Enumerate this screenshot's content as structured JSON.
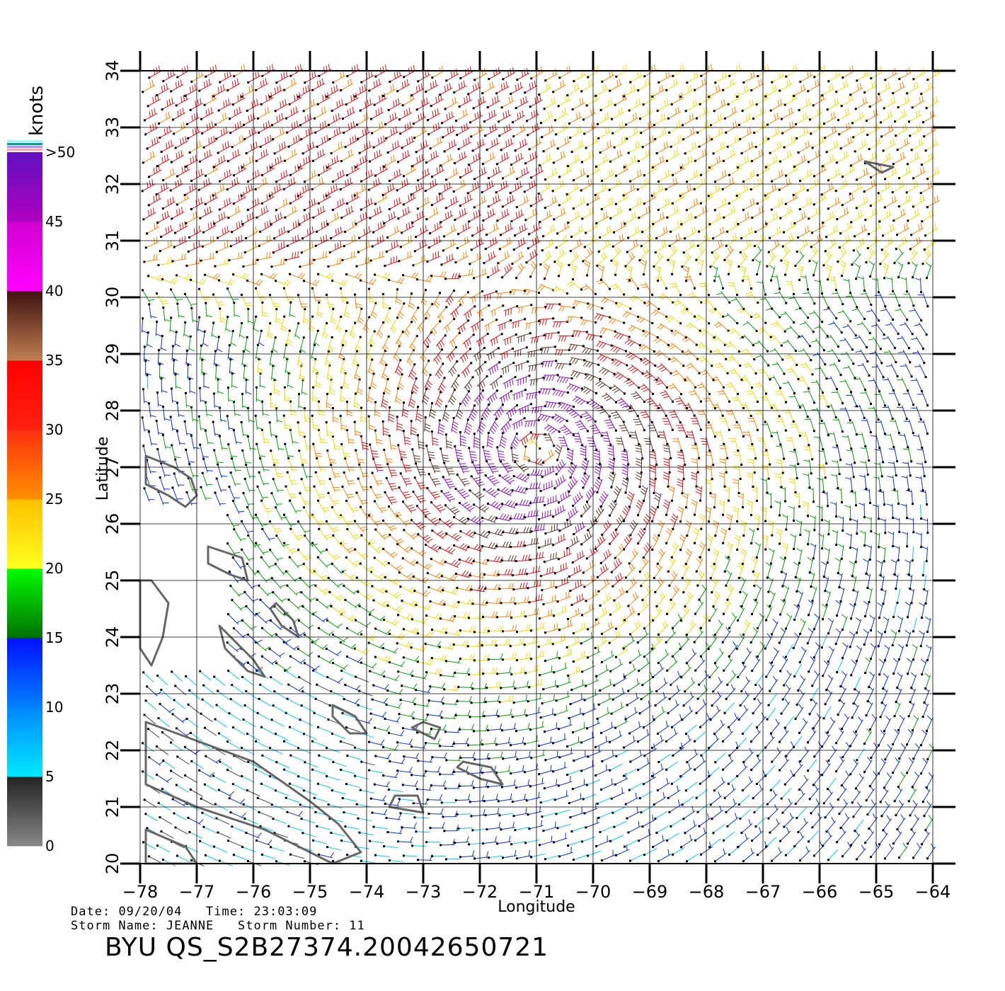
{
  "chart_data": {
    "type": "wind-barb-map",
    "xlabel": "Longitude",
    "ylabel": "Latitude",
    "xlim": [
      -78,
      -64
    ],
    "ylim": [
      20,
      34
    ],
    "x_ticks": [
      "−78",
      "−77",
      "−76",
      "−75",
      "−74",
      "−73",
      "−72",
      "−71",
      "−70",
      "−69",
      "−68",
      "−67",
      "−66",
      "−65",
      "−64"
    ],
    "y_ticks": [
      "20",
      "21",
      "22",
      "23",
      "24",
      "25",
      "26",
      "27",
      "28",
      "29",
      "30",
      "31",
      "32",
      "33",
      "34"
    ],
    "grid": true,
    "storm_center": {
      "lon": -71.0,
      "lat": 27.3
    },
    "colorbar": {
      "title": "knots",
      "placement": "left",
      "labels": [
        "0",
        "5",
        "10",
        "15",
        "20",
        "25",
        "30",
        "35",
        "40",
        "45",
        ">50"
      ],
      "bands": [
        {
          "min": 0,
          "max": 5,
          "from": "#888888",
          "to": "#222222"
        },
        {
          "min": 5,
          "max": 10,
          "from": "#00e8ff",
          "to": "#0088ff"
        },
        {
          "min": 10,
          "max": 15,
          "from": "#0080ff",
          "to": "#0010ff"
        },
        {
          "min": 15,
          "max": 20,
          "from": "#007000",
          "to": "#00ff00"
        },
        {
          "min": 20,
          "max": 25,
          "from": "#ffff20",
          "to": "#ffc000"
        },
        {
          "min": 25,
          "max": 30,
          "from": "#ff9000",
          "to": "#ff3010"
        },
        {
          "min": 30,
          "max": 35,
          "from": "#ff2010",
          "to": "#ff0000"
        },
        {
          "min": 35,
          "max": 40,
          "from": "#c08050",
          "to": "#401010"
        },
        {
          "min": 40,
          "max": 45,
          "from": "#ff00ff",
          "to": "#d000d0"
        },
        {
          "min": 45,
          "max": 50,
          "from": "#b000c0",
          "to": "#6010c0"
        }
      ]
    }
  },
  "footer": {
    "date_label": "Date:",
    "date": "09/20/04",
    "time_label": "Time:",
    "time": "23:03:09",
    "storm_name_label": "Storm Name:",
    "storm_name": "JEANNE",
    "storm_number_label": "Storm Number:",
    "storm_number": "11",
    "product_id": "BYU QS_S2B27374.20042650721"
  }
}
